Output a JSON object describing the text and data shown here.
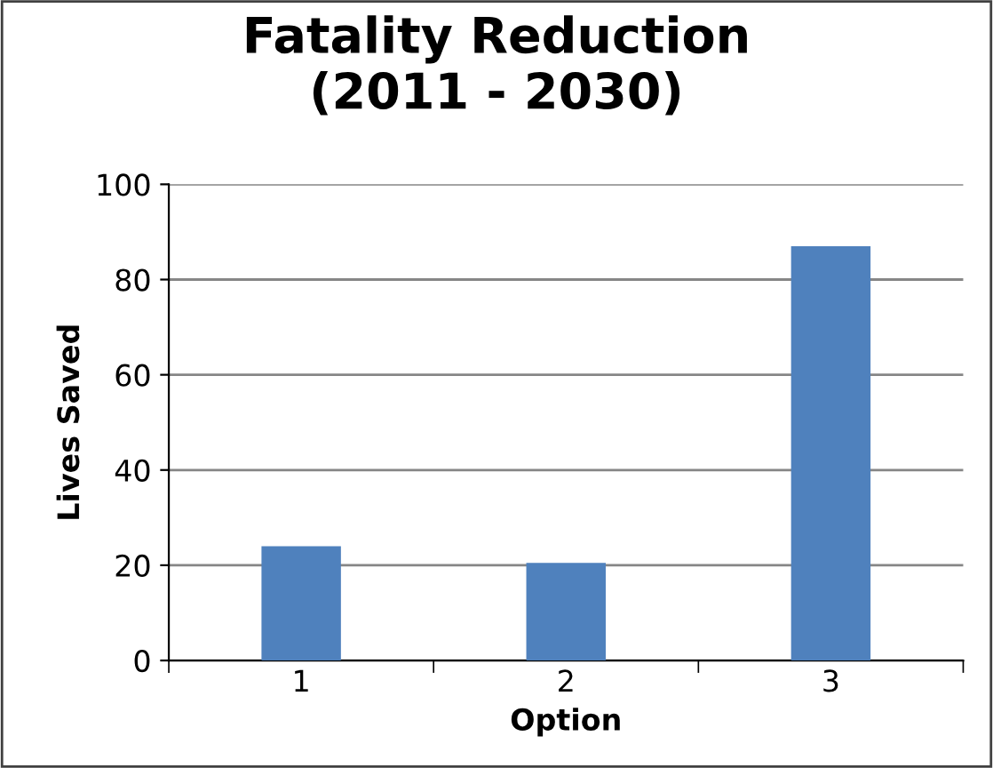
{
  "chart_data": {
    "type": "bar",
    "title": "Fatality Reduction\n(2011 - 2030)",
    "xlabel": "Option",
    "ylabel": "Lives Saved",
    "categories": [
      "1",
      "2",
      "3"
    ],
    "series": [
      {
        "color": "#4f81bd",
        "values": [
          24,
          20.5,
          87
        ]
      }
    ],
    "ylim": [
      0,
      100
    ],
    "yticks": [
      0,
      20,
      40,
      60,
      80,
      100
    ],
    "grid": "y",
    "legend": false
  }
}
